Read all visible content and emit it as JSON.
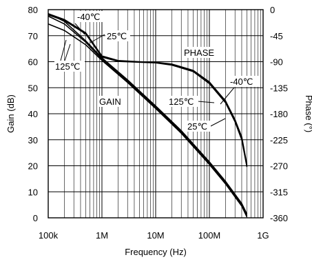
{
  "chart_data": {
    "type": "line",
    "xlabel": "Frequency (Hz)",
    "ylabel_left": "Gain (dB)",
    "ylabel_right": "Phase (°)",
    "x_scale": "log",
    "xlim": [
      100000,
      1000000000
    ],
    "ylim_left": [
      0,
      80
    ],
    "ylim_right": [
      -360,
      0
    ],
    "x_ticks": [
      {
        "value": 100000,
        "label": "100k"
      },
      {
        "value": 1000000,
        "label": "1M"
      },
      {
        "value": 10000000,
        "label": "10M"
      },
      {
        "value": 100000000,
        "label": "100M"
      },
      {
        "value": 1000000000,
        "label": "1G"
      }
    ],
    "y_ticks_left": [
      0,
      10,
      20,
      30,
      40,
      50,
      60,
      70,
      80
    ],
    "y_ticks_right": [
      0,
      -45,
      -90,
      -135,
      -180,
      -225,
      -270,
      -315,
      -360
    ],
    "grid": true,
    "annotations": [
      {
        "text": "GAIN"
      },
      {
        "text": "PHASE"
      },
      {
        "text": "-40℃"
      },
      {
        "text": "25℃"
      },
      {
        "text": "125℃"
      },
      {
        "text": "-40℃"
      },
      {
        "text": "125℃"
      },
      {
        "text": "25℃"
      }
    ],
    "series": [
      {
        "group": "gain",
        "temperature": "-40℃",
        "axis": "left",
        "x": [
          100000,
          200000,
          500000,
          1000000,
          3000000,
          10000000,
          30000000,
          100000000,
          200000000,
          400000000,
          500000000
        ],
        "y": [
          78.5,
          75.5,
          68,
          61.5,
          53,
          43,
          33.5,
          21.5,
          14,
          5.5,
          1.5
        ]
      },
      {
        "group": "gain",
        "temperature": "25℃",
        "axis": "left",
        "x": [
          100000,
          200000,
          500000,
          1000000,
          3000000,
          10000000,
          30000000,
          100000000,
          200000000,
          400000000,
          500000000
        ],
        "y": [
          77.5,
          74.5,
          67.5,
          61,
          52.5,
          42.5,
          33,
          21,
          13.5,
          5,
          0.8
        ]
      },
      {
        "group": "gain",
        "temperature": "125℃",
        "axis": "left",
        "x": [
          100000,
          200000,
          500000,
          1000000,
          3000000,
          10000000,
          30000000,
          100000000,
          200000000,
          400000000,
          500000000
        ],
        "y": [
          74.5,
          72,
          66.5,
          60.5,
          52,
          42,
          32.5,
          20.5,
          13,
          4.5,
          0.3
        ]
      },
      {
        "group": "phase",
        "temperature": "-40℃",
        "axis": "right",
        "x": [
          100000,
          200000,
          500000,
          1000000,
          2000000,
          5000000,
          10000000,
          20000000,
          50000000,
          100000000,
          200000000,
          300000000,
          400000000,
          500000000
        ],
        "y": [
          -7,
          -17,
          -40,
          -80,
          -88,
          -90,
          -91,
          -94,
          -105,
          -125,
          -158,
          -190,
          -220,
          -268
        ]
      },
      {
        "group": "phase",
        "temperature": "25℃",
        "axis": "right",
        "x": [
          100000,
          200000,
          500000,
          1000000,
          2000000,
          5000000,
          10000000,
          20000000,
          50000000,
          100000000,
          200000000,
          300000000,
          400000000,
          500000000
        ],
        "y": [
          -8,
          -18,
          -41,
          -81,
          -89,
          -90.5,
          -91.5,
          -95,
          -106,
          -127,
          -160,
          -192,
          -223,
          -270
        ]
      },
      {
        "group": "phase",
        "temperature": "125℃",
        "axis": "right",
        "x": [
          100000,
          200000,
          500000,
          1000000,
          2000000,
          5000000,
          10000000,
          20000000,
          50000000,
          100000000,
          200000000,
          300000000,
          400000000,
          500000000
        ],
        "y": [
          -9,
          -19,
          -42,
          -82,
          -89.5,
          -91,
          -92,
          -96,
          -107,
          -128,
          -161,
          -194,
          -225,
          -272
        ]
      }
    ]
  }
}
